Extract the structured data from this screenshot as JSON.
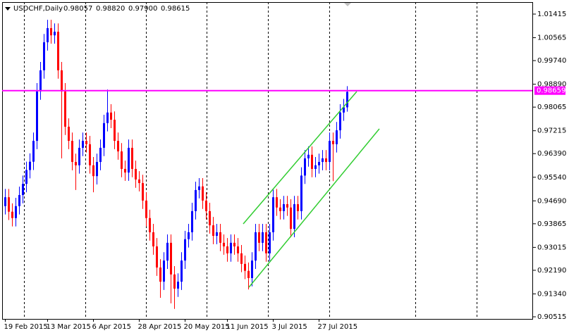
{
  "chart_data": {
    "type": "candlestick",
    "title": "USDCHF,Daily",
    "header": {
      "open": "0.98057",
      "high": "0.98820",
      "low": "0.97900",
      "close": "0.98615"
    },
    "up_color": "#0000ff",
    "down_color": "#ff0000",
    "categories": [
      "19 Feb 2015",
      null,
      null,
      null,
      null,
      null,
      null,
      null,
      null,
      null,
      null,
      null,
      "13 Mar 2015",
      null,
      null,
      null,
      null,
      null,
      null,
      null,
      null,
      null,
      null,
      null,
      null,
      "6 Apr 2015",
      null,
      null,
      null,
      null,
      null,
      null,
      null,
      null,
      null,
      null,
      null,
      null,
      "28 Apr 2015",
      null,
      null,
      null,
      null,
      null,
      null,
      null,
      null,
      null,
      null,
      null,
      null,
      "20 May 2015",
      null,
      null,
      null,
      null,
      null,
      null,
      null,
      null,
      null,
      null,
      null,
      "11 Jun 2015",
      null,
      null,
      null,
      null,
      null,
      null,
      null,
      null,
      null,
      null,
      null,
      null,
      "3 Jul 2015",
      null,
      null,
      null,
      null,
      null,
      null,
      null,
      null,
      null,
      null,
      null,
      null,
      "27 Jul 2015",
      null,
      null,
      null,
      null,
      null,
      null,
      null,
      null
    ],
    "open": [
      0.945,
      0.9482,
      0.943,
      0.9407,
      0.945,
      0.949,
      0.953,
      0.958,
      0.961,
      0.9685,
      0.9863,
      0.9939,
      1.004,
      1.0091,
      1.0065,
      1.0078,
      0.9939,
      0.9863,
      0.9736,
      0.9685,
      0.9609,
      0.9597,
      0.966,
      0.9685,
      0.9673,
      0.9597,
      0.9558,
      0.9609,
      0.966,
      0.9749,
      0.9787,
      0.9761,
      0.9685,
      0.9647,
      0.9584,
      0.9571,
      0.966,
      0.9584,
      0.9546,
      0.9533,
      0.947,
      0.9407,
      0.9356,
      0.9305,
      0.9229,
      0.9178,
      0.9254,
      0.9318,
      0.9204,
      0.9153,
      0.9178,
      0.9254,
      0.9331,
      0.9356,
      0.9432,
      0.9508,
      0.9521,
      0.947,
      0.9432,
      0.9381,
      0.9343,
      0.9356,
      0.9318,
      0.9305,
      0.928,
      0.9318,
      0.9305,
      0.928,
      0.9242,
      0.9217,
      0.9191,
      0.9254,
      0.9356,
      0.9318,
      0.9356,
      0.928,
      0.9356,
      0.9482,
      0.9445,
      0.9432,
      0.9457,
      0.9445,
      0.9368,
      0.9457,
      0.9432,
      0.956,
      0.9622,
      0.9635,
      0.9584,
      0.9597,
      0.9609,
      0.9622,
      0.9609,
      0.9685,
      0.9673,
      0.9723,
      0.9787,
      0.98057
    ],
    "high": [
      0.9512,
      0.9512,
      0.946,
      0.948,
      0.952,
      0.956,
      0.961,
      0.964,
      0.9715,
      0.9893,
      0.9969,
      1.007,
      1.0121,
      1.0121,
      1.0108,
      1.0108,
      0.9969,
      0.9893,
      0.9766,
      0.9715,
      0.9639,
      0.969,
      0.9715,
      0.9715,
      0.9703,
      0.9627,
      0.9639,
      0.969,
      0.9779,
      0.987,
      0.9817,
      0.9791,
      0.9715,
      0.9677,
      0.9614,
      0.969,
      0.969,
      0.9614,
      0.9576,
      0.9563,
      0.95,
      0.9437,
      0.9386,
      0.9335,
      0.9259,
      0.9284,
      0.9348,
      0.9348,
      0.9234,
      0.9208,
      0.9284,
      0.9361,
      0.9386,
      0.9462,
      0.9538,
      0.9551,
      0.9551,
      0.95,
      0.9462,
      0.9411,
      0.9386,
      0.9386,
      0.9348,
      0.9335,
      0.9348,
      0.9348,
      0.9335,
      0.931,
      0.9272,
      0.9247,
      0.9284,
      0.9386,
      0.9386,
      0.9386,
      0.9386,
      0.9386,
      0.9512,
      0.9512,
      0.9475,
      0.9487,
      0.9487,
      0.9475,
      0.9487,
      0.9487,
      0.959,
      0.9652,
      0.9665,
      0.9665,
      0.9627,
      0.9639,
      0.9652,
      0.9652,
      0.9715,
      0.9715,
      0.9753,
      0.9817,
      0.9836,
      0.9882
    ],
    "low": [
      0.942,
      0.94,
      0.9377,
      0.9377,
      0.942,
      0.946,
      0.95,
      0.955,
      0.958,
      0.9655,
      0.9833,
      0.9909,
      1.001,
      1.0035,
      1.0035,
      0.9909,
      0.9622,
      0.9706,
      0.9655,
      0.9579,
      0.9508,
      0.9567,
      0.963,
      0.9643,
      0.9567,
      0.95,
      0.9528,
      0.9579,
      0.963,
      0.9719,
      0.9731,
      0.9655,
      0.9617,
      0.9554,
      0.9541,
      0.9541,
      0.9554,
      0.9516,
      0.9503,
      0.944,
      0.9377,
      0.9326,
      0.9275,
      0.9199,
      0.912,
      0.9148,
      0.9224,
      0.91,
      0.908,
      0.9123,
      0.9148,
      0.9224,
      0.9301,
      0.9326,
      0.9402,
      0.9478,
      0.944,
      0.9402,
      0.9351,
      0.9313,
      0.9313,
      0.9288,
      0.9275,
      0.925,
      0.925,
      0.9275,
      0.925,
      0.9212,
      0.9187,
      0.915,
      0.9161,
      0.9224,
      0.9288,
      0.9288,
      0.925,
      0.925,
      0.9326,
      0.9415,
      0.9402,
      0.9402,
      0.9415,
      0.9338,
      0.9338,
      0.9402,
      0.9402,
      0.953,
      0.9592,
      0.9554,
      0.9554,
      0.9567,
      0.9579,
      0.9579,
      0.9579,
      0.954,
      0.9643,
      0.9693,
      0.9757,
      0.979
    ],
    "close": [
      0.9482,
      0.943,
      0.9407,
      0.945,
      0.949,
      0.953,
      0.958,
      0.961,
      0.9685,
      0.9863,
      0.9939,
      1.004,
      1.0091,
      1.0065,
      1.0078,
      0.9939,
      0.9863,
      0.9736,
      0.9685,
      0.9609,
      0.9597,
      0.966,
      0.9685,
      0.9673,
      0.9597,
      0.9558,
      0.9609,
      0.966,
      0.9749,
      0.9787,
      0.9761,
      0.9685,
      0.9647,
      0.9584,
      0.9571,
      0.966,
      0.9584,
      0.9546,
      0.9533,
      0.947,
      0.9407,
      0.9356,
      0.9305,
      0.9229,
      0.9178,
      0.9254,
      0.9318,
      0.9204,
      0.9153,
      0.9178,
      0.9254,
      0.9331,
      0.9356,
      0.9432,
      0.9508,
      0.9521,
      0.947,
      0.9432,
      0.9381,
      0.9343,
      0.9356,
      0.9318,
      0.9305,
      0.928,
      0.9318,
      0.9305,
      0.928,
      0.9242,
      0.9217,
      0.9191,
      0.9254,
      0.9356,
      0.9318,
      0.9356,
      0.928,
      0.9356,
      0.9482,
      0.9445,
      0.9432,
      0.9457,
      0.9445,
      0.9368,
      0.9457,
      0.9432,
      0.956,
      0.9622,
      0.9635,
      0.9584,
      0.9597,
      0.9609,
      0.9622,
      0.9609,
      0.9685,
      0.9673,
      0.9723,
      0.9787,
      0.9806,
      0.98615
    ],
    "ylim": [
      0.90439,
      1.01846
    ],
    "yticks": [
      1.01415,
      1.00565,
      {
        "value": 0.9974,
        "label": "0.99740"
      },
      {
        "value": 0.9889,
        "label": "0.98890"
      },
      0.98065,
      0.97215,
      {
        "value": 0.9639,
        "label": "0.96390"
      },
      {
        "value": 0.9554,
        "label": "0.95540"
      },
      {
        "value": 0.9469,
        "label": "0.94690"
      },
      0.93865,
      0.93015,
      {
        "value": 0.9219,
        "label": "0.92190"
      },
      {
        "value": 0.9134,
        "label": "0.91340"
      },
      0.90515
    ],
    "hline": {
      "value": 0.98659,
      "color": "#ff00ff"
    }
  }
}
